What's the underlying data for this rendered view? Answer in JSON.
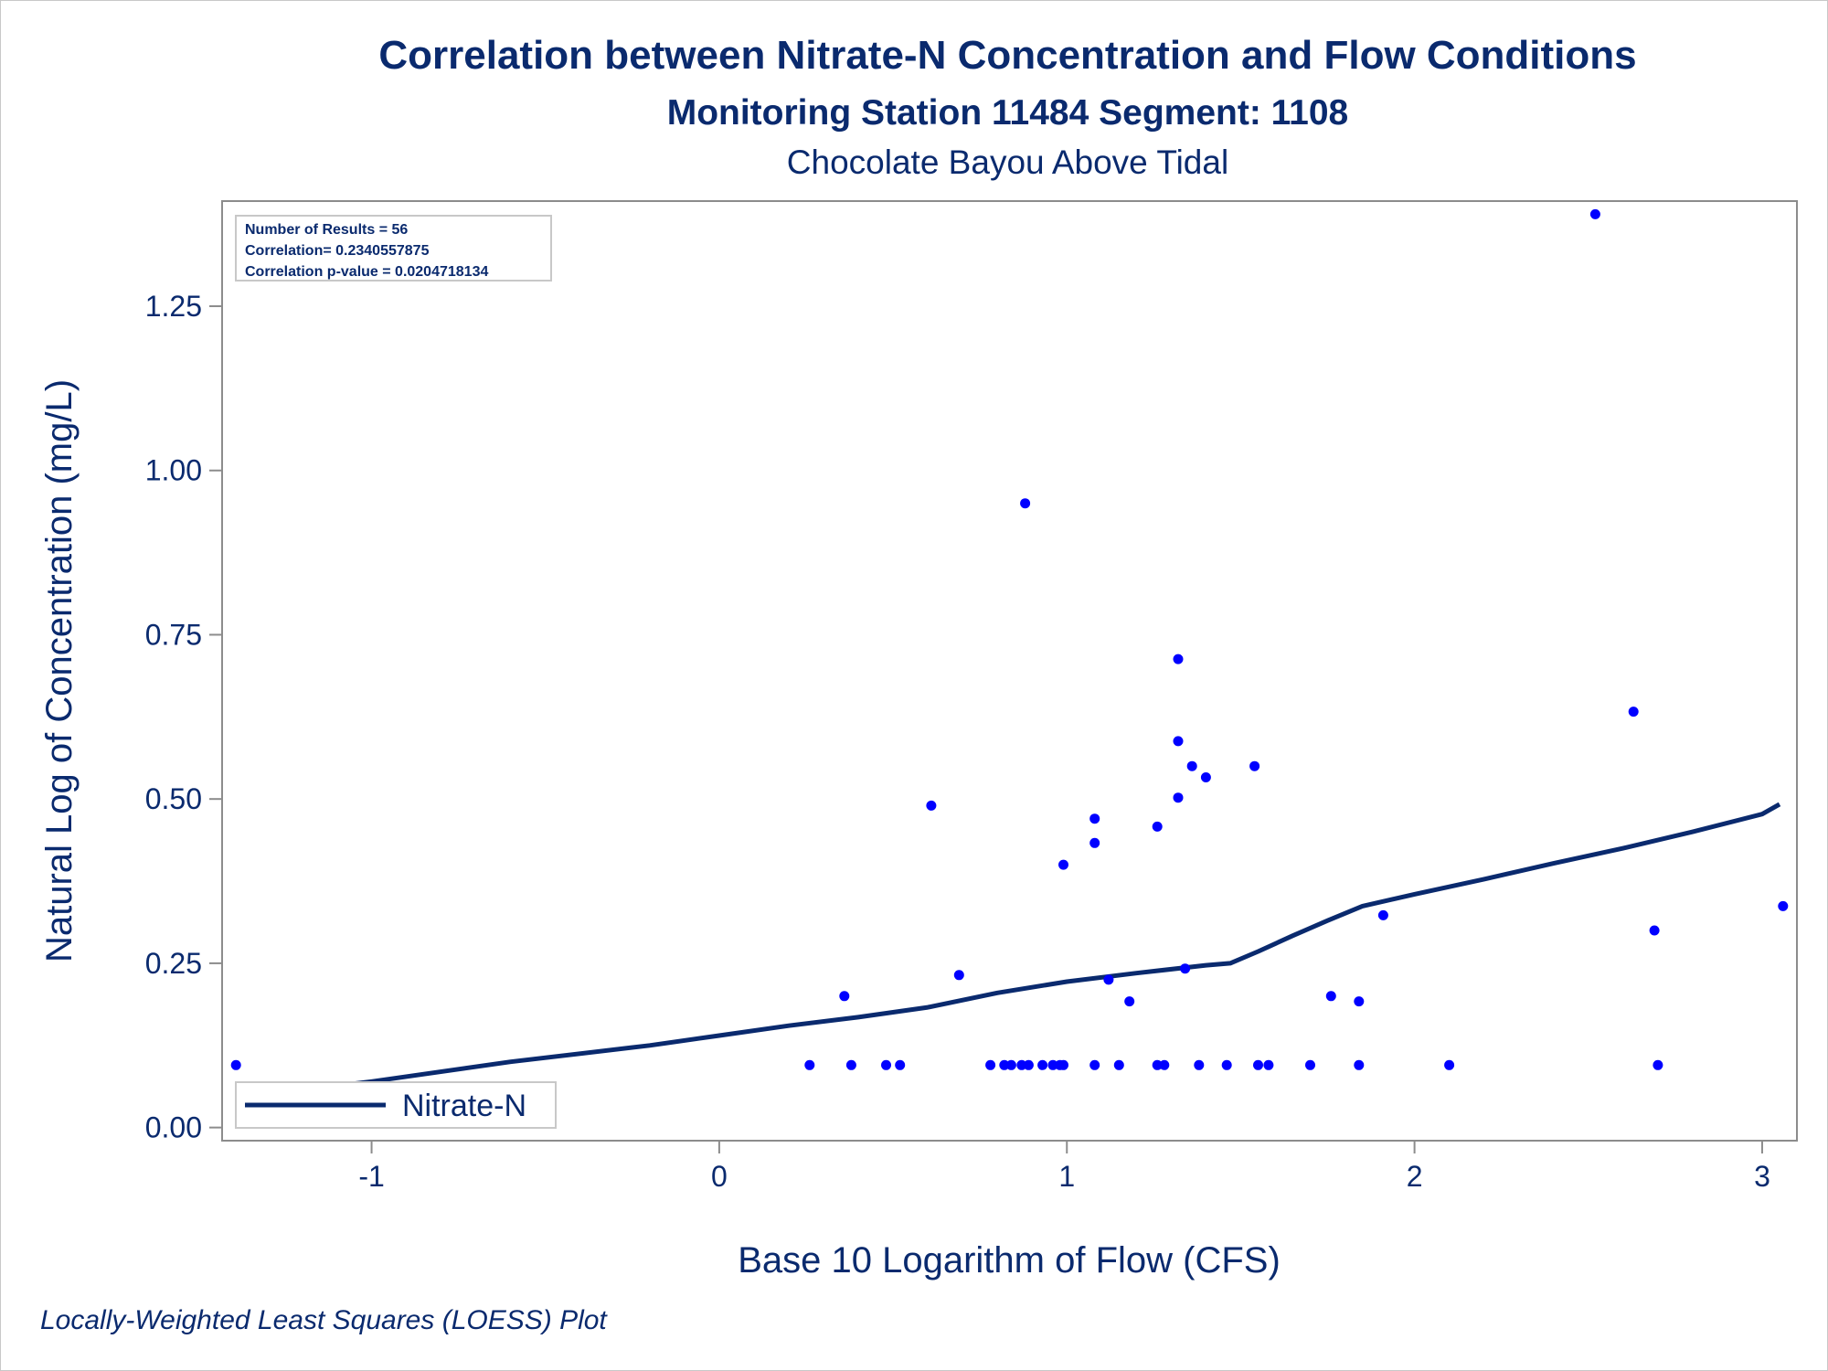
{
  "title": "Correlation between Nitrate-N Concentration and Flow Conditions",
  "subtitle1": "Monitoring Station 11484 Segment: 1108",
  "subtitle2": "Chocolate Bayou Above Tidal",
  "footnote": "Locally-Weighted Least Squares (LOESS) Plot",
  "stats": {
    "line1": "Number of Results = 56",
    "line2": "Correlation= 0.2340557875",
    "line3": "Correlation p-value = 0.0204718134"
  },
  "colors": {
    "points": "#0000ff",
    "line": "#0a2a6e",
    "text": "#0a2a6e",
    "axis": "#8c8c8c"
  },
  "chart_data": {
    "type": "scatter",
    "xlabel": "Base 10 Logarithm of Flow (CFS)",
    "ylabel": "Natural Log of Concentration (mg/L)",
    "xlim": [
      -1.43,
      3.1
    ],
    "ylim": [
      -0.02,
      1.41
    ],
    "xticks": [
      -1,
      0,
      1,
      2,
      3
    ],
    "xtick_labels": [
      "-1",
      "0",
      "1",
      "2",
      "3"
    ],
    "yticks": [
      0,
      0.25,
      0.5,
      0.75,
      1.0,
      1.25
    ],
    "ytick_labels": [
      "0.00",
      "0.25",
      "0.50",
      "0.75",
      "1.00",
      "1.25"
    ],
    "grid": false,
    "legend_position": "bottom-left",
    "series": [
      {
        "name": "Nitrate-N",
        "type": "scatter",
        "points": [
          [
            -1.39,
            0.095
          ],
          [
            0.26,
            0.095
          ],
          [
            0.36,
            0.2
          ],
          [
            0.38,
            0.095
          ],
          [
            0.48,
            0.095
          ],
          [
            0.52,
            0.095
          ],
          [
            0.61,
            0.49
          ],
          [
            0.69,
            0.232
          ],
          [
            0.78,
            0.095
          ],
          [
            0.82,
            0.095
          ],
          [
            0.84,
            0.095
          ],
          [
            0.87,
            0.095
          ],
          [
            0.88,
            0.95
          ],
          [
            0.89,
            0.095
          ],
          [
            0.93,
            0.095
          ],
          [
            0.96,
            0.095
          ],
          [
            0.98,
            0.095
          ],
          [
            0.99,
            0.095
          ],
          [
            0.99,
            0.4
          ],
          [
            1.08,
            0.47
          ],
          [
            1.08,
            0.433
          ],
          [
            1.08,
            0.095
          ],
          [
            1.12,
            0.225
          ],
          [
            1.15,
            0.095
          ],
          [
            1.18,
            0.192
          ],
          [
            1.26,
            0.458
          ],
          [
            1.26,
            0.095
          ],
          [
            1.28,
            0.095
          ],
          [
            1.32,
            0.713
          ],
          [
            1.32,
            0.588
          ],
          [
            1.32,
            0.502
          ],
          [
            1.34,
            0.242
          ],
          [
            1.36,
            0.55
          ],
          [
            1.38,
            0.095
          ],
          [
            1.4,
            0.533
          ],
          [
            1.46,
            0.095
          ],
          [
            1.54,
            0.55
          ],
          [
            1.55,
            0.095
          ],
          [
            1.58,
            0.095
          ],
          [
            1.7,
            0.095
          ],
          [
            1.76,
            0.2
          ],
          [
            1.84,
            0.192
          ],
          [
            1.84,
            0.095
          ],
          [
            1.91,
            0.323
          ],
          [
            2.1,
            0.095
          ],
          [
            2.52,
            1.39
          ],
          [
            2.63,
            0.633
          ],
          [
            2.69,
            0.3
          ],
          [
            2.7,
            0.095
          ],
          [
            3.06,
            0.337
          ]
        ]
      },
      {
        "name": "Nitrate-N",
        "type": "line",
        "points": [
          [
            -1.39,
            0.045
          ],
          [
            -1.0,
            0.07
          ],
          [
            -0.6,
            0.1
          ],
          [
            -0.2,
            0.125
          ],
          [
            0.0,
            0.14
          ],
          [
            0.2,
            0.155
          ],
          [
            0.4,
            0.168
          ],
          [
            0.6,
            0.183
          ],
          [
            0.8,
            0.205
          ],
          [
            1.0,
            0.222
          ],
          [
            1.2,
            0.235
          ],
          [
            1.4,
            0.247
          ],
          [
            1.47,
            0.25
          ],
          [
            1.55,
            0.268
          ],
          [
            1.65,
            0.292
          ],
          [
            1.75,
            0.315
          ],
          [
            1.85,
            0.337
          ],
          [
            2.0,
            0.355
          ],
          [
            2.2,
            0.378
          ],
          [
            2.4,
            0.402
          ],
          [
            2.6,
            0.425
          ],
          [
            2.8,
            0.45
          ],
          [
            3.0,
            0.477
          ],
          [
            3.05,
            0.492
          ]
        ]
      }
    ]
  }
}
